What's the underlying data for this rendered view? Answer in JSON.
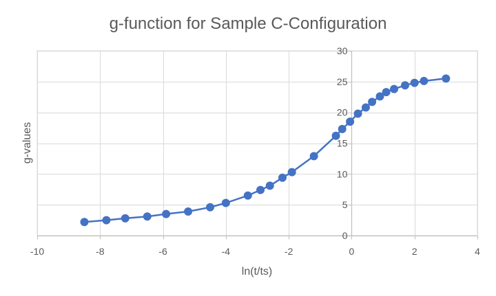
{
  "chart_data": {
    "type": "scatter",
    "title": "g-function for Sample C-Configuration",
    "xlabel": "ln(t/ts)",
    "ylabel": "g-values",
    "xlim": [
      -10,
      4
    ],
    "ylim": [
      0,
      30
    ],
    "x_ticks": [
      -10,
      -8,
      -6,
      -4,
      -2,
      0,
      2,
      4
    ],
    "x_tick_labels": [
      "-10",
      "-8",
      "-6",
      "-4",
      "-2",
      "0",
      "2",
      "4"
    ],
    "y_ticks": [
      0,
      5,
      10,
      15,
      20,
      25,
      30
    ],
    "y_tick_labels": [
      "0",
      "5",
      "10",
      "15",
      "20",
      "25",
      "30"
    ],
    "grid": true,
    "line_color": "#4472C4",
    "series": [
      {
        "x": [
          -8.5,
          -7.8,
          -7.2,
          -6.5,
          -5.9,
          -5.2,
          -4.5,
          -4.0,
          -3.3,
          -2.9,
          -2.6,
          -2.2,
          -1.9,
          -1.2,
          -0.5,
          -0.3,
          -0.05,
          0.2,
          0.45,
          0.65,
          0.9,
          1.1,
          1.35,
          1.7,
          2.0,
          2.3,
          3.0
        ],
        "y": [
          2.2,
          2.5,
          2.8,
          3.1,
          3.5,
          3.9,
          4.6,
          5.3,
          6.5,
          7.4,
          8.1,
          9.4,
          10.3,
          12.9,
          16.2,
          17.3,
          18.5,
          19.8,
          20.8,
          21.7,
          22.6,
          23.3,
          23.8,
          24.4,
          24.8,
          25.1,
          25.5
        ]
      }
    ]
  }
}
